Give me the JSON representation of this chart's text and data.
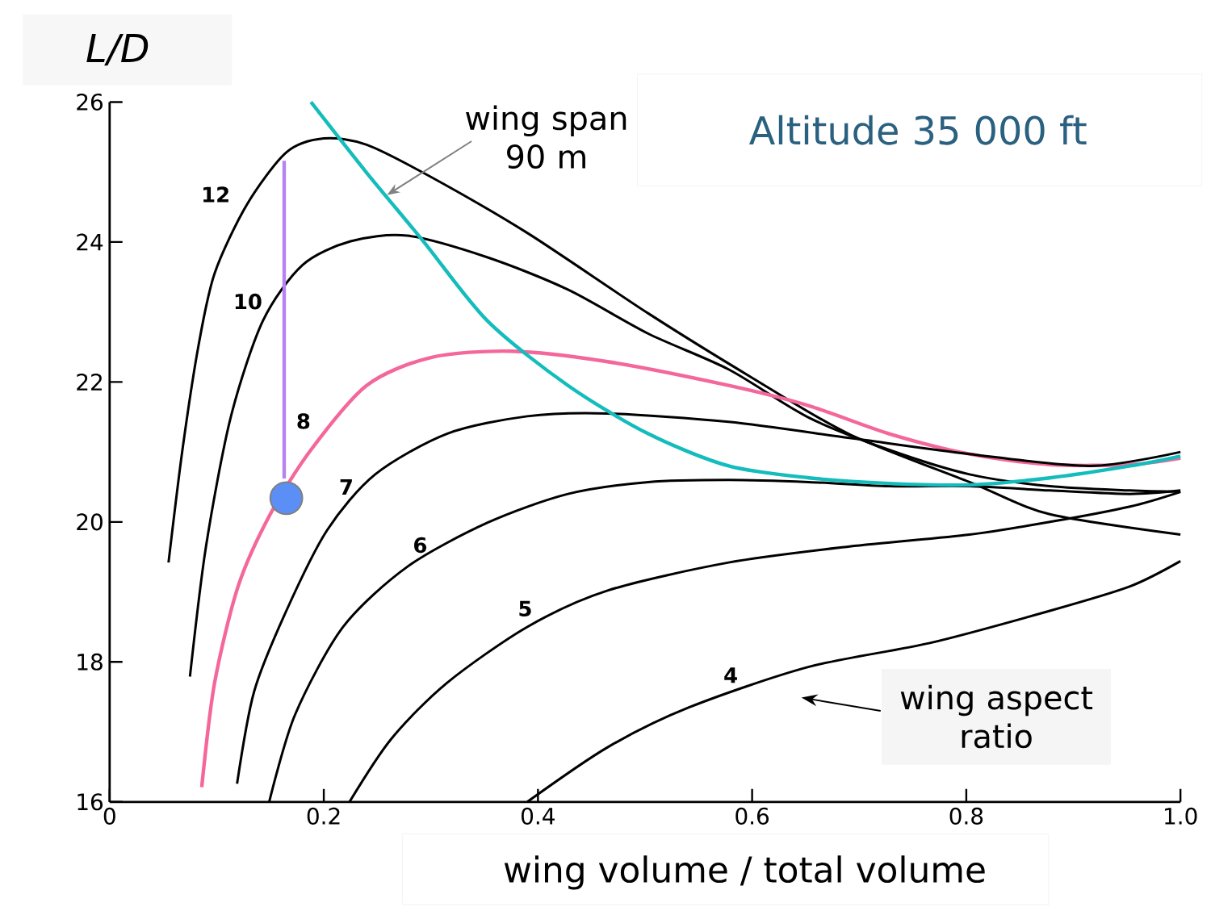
{
  "chart_data": {
    "type": "line",
    "xlabel": "wing volume / total volume",
    "ylabel": "L/D",
    "xlim": [
      0,
      1
    ],
    "ylim": [
      16,
      26
    ],
    "xticks": [
      0,
      0.2,
      0.4,
      0.6,
      0.8,
      {
        "value": 1,
        "label": "1.0"
      }
    ],
    "yticks": [
      16,
      18,
      20,
      22,
      24,
      26
    ],
    "grid": false,
    "marker": "none",
    "annotations": [
      {
        "text": "wing span 90 m",
        "x": 0.259,
        "y": 24.67
      },
      "Altitude 35 000 ft",
      "wing aspect ratio"
    ],
    "series": [
      {
        "name": "12",
        "color": "#000000",
        "x": [
          0.055,
          0.068,
          0.083,
          0.098,
          0.128,
          0.165,
          0.2,
          0.24,
          0.3,
          0.39,
          0.503,
          0.6,
          0.69,
          0.803,
          0.878,
          1.0
        ],
        "values": [
          19.42,
          21.03,
          22.52,
          23.55,
          24.53,
          25.28,
          25.48,
          25.39,
          24.93,
          24.13,
          22.98,
          22.06,
          21.26,
          20.57,
          20.11,
          19.82
        ]
      },
      {
        "name": "10",
        "color": "#000000",
        "x": [
          0.075,
          0.09,
          0.113,
          0.143,
          0.18,
          0.225,
          0.278,
          0.353,
          0.428,
          0.503,
          0.578,
          0.653,
          0.728,
          0.803,
          0.878,
          0.953,
          1.0
        ],
        "values": [
          17.79,
          19.65,
          21.49,
          22.87,
          23.67,
          24.01,
          24.09,
          23.78,
          23.32,
          22.69,
          22.18,
          21.49,
          21.03,
          20.68,
          20.51,
          20.45,
          20.43
        ]
      },
      {
        "name": "8",
        "color": "#f4679a",
        "x": [
          0.086,
          0.098,
          0.12,
          0.15,
          0.188,
          0.24,
          0.3,
          0.375,
          0.465,
          0.578,
          0.653,
          0.728,
          0.803,
          0.878,
          0.953,
          1.0
        ],
        "values": [
          16.21,
          17.7,
          19.08,
          20.11,
          21.03,
          21.95,
          22.35,
          22.44,
          22.29,
          21.95,
          21.66,
          21.26,
          20.97,
          20.82,
          20.82,
          20.91
        ]
      },
      {
        "name": "7",
        "color": "#000000",
        "x": [
          0.119,
          0.135,
          0.165,
          0.203,
          0.248,
          0.315,
          0.39,
          0.465,
          0.578,
          0.691,
          0.803,
          0.916,
          1.0
        ],
        "values": [
          16.26,
          17.58,
          18.73,
          19.88,
          20.68,
          21.26,
          21.51,
          21.55,
          21.43,
          21.2,
          20.97,
          20.8,
          21.0
        ]
      },
      {
        "name": "6",
        "color": "#000000",
        "x": [
          0.149,
          0.173,
          0.218,
          0.278,
          0.353,
          0.428,
          0.503,
          0.578,
          0.653,
          0.728,
          0.803,
          0.878,
          0.953,
          1.0
        ],
        "values": [
          16.0,
          17.24,
          18.5,
          19.36,
          19.99,
          20.4,
          20.57,
          20.6,
          20.57,
          20.51,
          20.51,
          20.45,
          20.4,
          20.45
        ]
      },
      {
        "name": "5",
        "color": "#000000",
        "x": [
          0.224,
          0.263,
          0.315,
          0.39,
          0.465,
          0.578,
          0.691,
          0.803,
          0.878,
          0.953,
          1.0
        ],
        "values": [
          16.0,
          16.9,
          17.7,
          18.5,
          19.02,
          19.42,
          19.65,
          19.82,
          20.0,
          20.22,
          20.43
        ]
      },
      {
        "name": "4",
        "color": "#000000",
        "x": [
          0.39,
          0.465,
          0.541,
          0.653,
          0.766,
          0.878,
          0.953,
          1.0
        ],
        "values": [
          16.0,
          16.78,
          17.35,
          17.93,
          18.27,
          18.73,
          19.08,
          19.44
        ]
      },
      {
        "color": "#14bcbc",
        "x": [
          0.188,
          0.24,
          0.293,
          0.353,
          0.428,
          0.503,
          0.578,
          0.653,
          0.728,
          0.803,
          0.878,
          0.953,
          1.0
        ],
        "values": [
          26.0,
          24.99,
          24.01,
          22.87,
          21.95,
          21.26,
          20.8,
          20.63,
          20.55,
          20.53,
          20.63,
          20.8,
          20.94
        ]
      },
      {
        "color": "#b584f2",
        "x": [
          0.163,
          0.163
        ],
        "values": [
          20.62,
          25.16
        ]
      },
      {
        "type": "scatter",
        "marker": "circle",
        "color": "#5b8ff5",
        "x": [
          0.165
        ],
        "values": [
          20.34
        ]
      }
    ]
  }
}
